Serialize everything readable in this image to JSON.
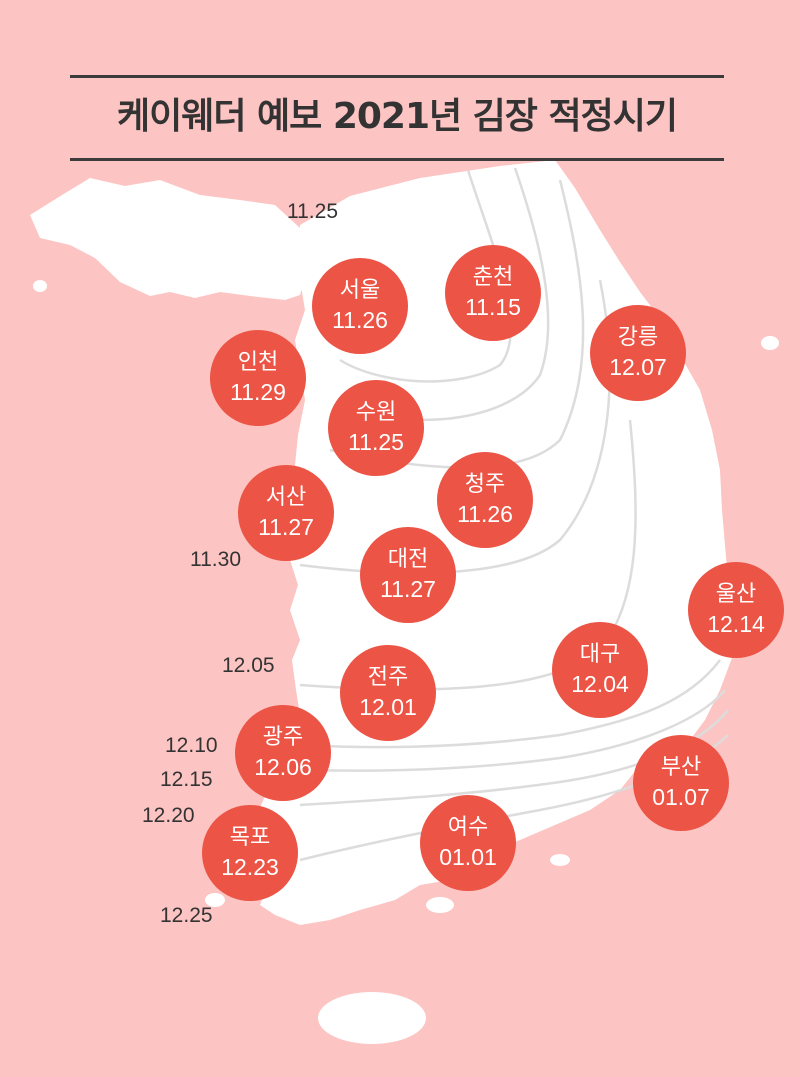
{
  "title": "케이웨더 예보 2021년 김장 적정시기",
  "isoline_labels": [
    {
      "id": "iso-1125",
      "text": "11.25"
    },
    {
      "id": "iso-1130",
      "text": "11.30"
    },
    {
      "id": "iso-1205",
      "text": "12.05"
    },
    {
      "id": "iso-1210",
      "text": "12.10"
    },
    {
      "id": "iso-1215",
      "text": "12.15"
    },
    {
      "id": "iso-1220",
      "text": "12.20"
    },
    {
      "id": "iso-1225",
      "text": "12.25"
    }
  ],
  "cities": [
    {
      "id": "seoul",
      "name": "서울",
      "date": "11.26"
    },
    {
      "id": "chuncheon",
      "name": "춘천",
      "date": "11.15"
    },
    {
      "id": "gangneung",
      "name": "강릉",
      "date": "12.07"
    },
    {
      "id": "incheon",
      "name": "인천",
      "date": "11.29"
    },
    {
      "id": "suwon",
      "name": "수원",
      "date": "11.25"
    },
    {
      "id": "cheongju",
      "name": "청주",
      "date": "11.26"
    },
    {
      "id": "seosan",
      "name": "서산",
      "date": "11.27"
    },
    {
      "id": "daejeon",
      "name": "대전",
      "date": "11.27"
    },
    {
      "id": "ulsan",
      "name": "울산",
      "date": "12.14"
    },
    {
      "id": "daegu",
      "name": "대구",
      "date": "12.04"
    },
    {
      "id": "jeonju",
      "name": "전주",
      "date": "12.01"
    },
    {
      "id": "gwangju",
      "name": "광주",
      "date": "12.06"
    },
    {
      "id": "busan",
      "name": "부산",
      "date": "01.07"
    },
    {
      "id": "mokpo",
      "name": "목포",
      "date": "12.23"
    },
    {
      "id": "yeosu",
      "name": "여수",
      "date": "01.01"
    }
  ]
}
